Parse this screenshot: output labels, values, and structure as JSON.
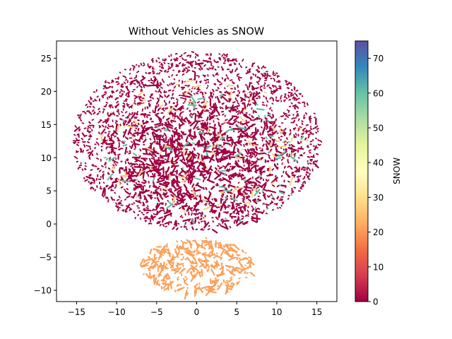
{
  "chart_data": {
    "type": "scatter",
    "title": "Without Vehicles as SNOW",
    "xlabel": "",
    "ylabel": "",
    "xlim": [
      -17.5,
      17.5
    ],
    "ylim": [
      -11.7,
      27.6
    ],
    "xticks": [
      -15,
      -10,
      -5,
      0,
      5,
      10,
      15
    ],
    "yticks": [
      -10,
      -5,
      0,
      5,
      10,
      15,
      20,
      25
    ],
    "xtick_labels": [
      "−15",
      "−10",
      "−5",
      "0",
      "5",
      "10",
      "15"
    ],
    "ytick_labels": [
      "−10",
      "−5",
      "0",
      "5",
      "10",
      "15",
      "20",
      "25"
    ],
    "grid": false,
    "colorbar": {
      "label": "SNOW",
      "colormap": "Spectral",
      "vmin": 0,
      "vmax": 75,
      "ticks": [
        0,
        10,
        20,
        30,
        40,
        50,
        60,
        70
      ],
      "tick_labels": [
        "0",
        "10",
        "20",
        "30",
        "40",
        "50",
        "60",
        "70"
      ],
      "colors": [
        "#9e0142",
        "#d53e4f",
        "#f46d43",
        "#fdae61",
        "#fee08b",
        "#ffffbf",
        "#e6f598",
        "#abdda4",
        "#66c2a5",
        "#3288bd",
        "#5e4fa2"
      ]
    },
    "clusters": [
      {
        "description_value": 0,
        "region": {
          "x": [
            -15.5,
            16
          ],
          "y": [
            -1,
            26
          ]
        },
        "weight": 0.86
      },
      {
        "description_value": 21,
        "region": {
          "x": [
            -7,
            7
          ],
          "y": [
            -10.5,
            -2
          ]
        },
        "weight": 0.09
      },
      {
        "description_value": 28,
        "region": {
          "x": [
            -13,
            14
          ],
          "y": [
            1,
            22
          ]
        },
        "weight": 0.03
      },
      {
        "description_value": 60,
        "region": {
          "x": [
            -12,
            14
          ],
          "y": [
            0,
            20
          ]
        },
        "weight": 0.02
      }
    ],
    "point_count": 4200
  }
}
